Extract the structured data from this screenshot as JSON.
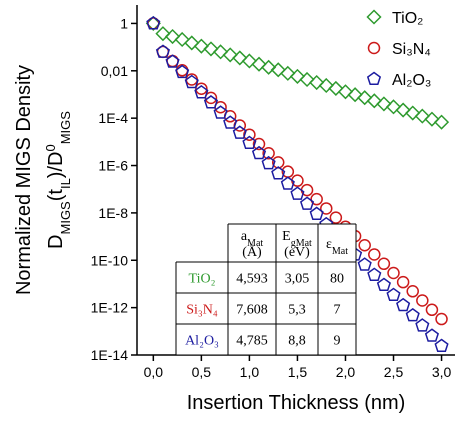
{
  "chart_data": {
    "type": "scatter",
    "x_label": "Insertion Thickness (nm)",
    "y_label": [
      [
        {
          "text": "Normalized MIGS Density"
        }
      ],
      [
        {
          "text": "D"
        },
        {
          "text": "MIGS",
          "shift": "sub"
        },
        {
          "text": "(t"
        },
        {
          "text": "IL",
          "shift": "sub"
        },
        {
          "text": ")/D"
        },
        {
          "text": "0",
          "shift": "super"
        },
        {
          "text": "MIGS",
          "shift": "sub"
        }
      ]
    ],
    "y_scale": "log",
    "xlim": [
      -0.17,
      3.14
    ],
    "ylim": [
      1e-14,
      6
    ],
    "xticks": [
      {
        "value": 0,
        "label": "0,0"
      },
      {
        "value": 0.5,
        "label": "0,5"
      },
      {
        "value": 1,
        "label": "1,0"
      },
      {
        "value": 1.5,
        "label": "1,5"
      },
      {
        "value": 2,
        "label": "2,0"
      },
      {
        "value": 2.5,
        "label": "2,5"
      },
      {
        "value": 3,
        "label": "3,0"
      }
    ],
    "yticks": [
      1,
      {
        "value": 0.01,
        "label": "0,01"
      },
      {
        "value": 0.0001,
        "label": "1E-4"
      },
      {
        "value": 1e-06,
        "label": "1E-6"
      },
      {
        "value": 1e-08,
        "label": "1E-8"
      },
      {
        "value": 1e-10,
        "label": "1E-10"
      },
      {
        "value": 1e-12,
        "label": "1E-12"
      },
      {
        "value": 1e-14,
        "label": "1E-14"
      }
    ],
    "legend": "top-right",
    "x": [
      0,
      0.1,
      0.2,
      0.3,
      0.4,
      0.5,
      0.6,
      0.7,
      0.8,
      0.9,
      1.0,
      1.1,
      1.2,
      1.3,
      1.4,
      1.5,
      1.6,
      1.7,
      1.8,
      1.9,
      2.0,
      2.1,
      2.2,
      2.3,
      2.4,
      2.5,
      2.6,
      2.7,
      2.8,
      2.9,
      3.0
    ],
    "series": [
      {
        "name": "TiO₂",
        "color": "#2e9a2e",
        "marker": "diamond",
        "values": [
          1,
          0.37,
          0.28,
          0.21,
          0.15,
          0.11,
          0.084,
          0.063,
          0.047,
          0.035,
          0.026,
          0.019,
          0.014,
          0.011,
          0.0078,
          0.0058,
          0.0043,
          0.0032,
          0.0024,
          0.0018,
          0.0013,
          0.00098,
          0.00073,
          0.00054,
          0.0004,
          0.0003,
          0.00022,
          0.000165,
          0.000122,
          9.1e-05,
          6.8e-05
        ]
      },
      {
        "name": "Si₃N₄",
        "color": "#cc1a1a",
        "marker": "circle",
        "values": [
          1,
          0.063,
          0.026,
          0.0105,
          0.0043,
          0.00175,
          0.00072,
          0.00029,
          0.00012,
          4.9e-05,
          2e-05,
          8.1e-06,
          3.3e-06,
          1.36e-06,
          5.5e-07,
          2.3e-07,
          9.2e-08,
          3.8e-08,
          1.54e-08,
          6.3e-09,
          2.6e-09,
          1.05e-09,
          4.3e-10,
          1.75e-10,
          7.1e-11,
          2.9e-11,
          1.19e-11,
          4.9e-12,
          2e-12,
          8.1e-13,
          3.3e-13
        ]
      },
      {
        "name": "Al₂O₃",
        "color": "#1c1ca0",
        "marker": "pentagon",
        "values": [
          1,
          0.063,
          0.024,
          0.0088,
          0.0033,
          0.00122,
          0.00046,
          0.00017,
          6.4e-05,
          2.4e-05,
          8.9e-06,
          3.3e-06,
          1.24e-06,
          4.6e-07,
          1.7e-07,
          6.4e-08,
          2.4e-08,
          9e-09,
          3.3e-09,
          1.25e-09,
          4.7e-10,
          1.74e-10,
          6.5e-11,
          2.4e-11,
          9e-12,
          3.4e-12,
          1.26e-12,
          4.7e-13,
          1.75e-13,
          6.5e-14,
          2.4e-14
        ]
      }
    ],
    "table": {
      "columns": [
        {
          "symbol": [
            {
              "text": "a"
            },
            {
              "text": "Mat",
              "shift": "sub"
            }
          ],
          "unit": "(Å)"
        },
        {
          "symbol": [
            {
              "text": "E"
            },
            {
              "text": "gMat",
              "shift": "sub"
            }
          ],
          "unit": "(eV)"
        },
        {
          "symbol": [
            {
              "text": "ε"
            },
            {
              "text": "Mat",
              "shift": "sub"
            }
          ]
        }
      ],
      "rows": [
        {
          "label": "TiO₂",
          "cells": [
            "4,593",
            "3,05",
            "80"
          ]
        },
        {
          "label": "Si₃N₄",
          "cells": [
            "7,608",
            "5,3",
            "7"
          ]
        },
        {
          "label": "Al₂O₃",
          "cells": [
            "4,785",
            "8,8",
            "9"
          ]
        }
      ]
    }
  }
}
